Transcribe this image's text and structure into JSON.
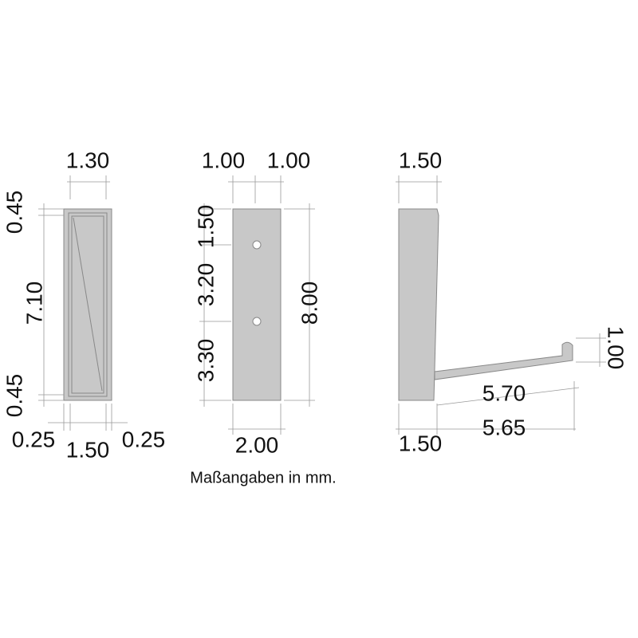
{
  "views": [
    {
      "dimensions": [
        "1.30",
        "0.45",
        "7.10",
        "0.45",
        "0.25",
        "1.50",
        "0.25"
      ]
    },
    {
      "dimensions": [
        "1.00",
        "1.00",
        "1.50",
        "3.20",
        "3.30",
        "8.00",
        "2.00"
      ]
    },
    {
      "dimensions": [
        "1.50",
        "1.00",
        "5.70",
        "5.65",
        "1.50"
      ]
    }
  ],
  "caption": "Maßangaben in mm."
}
